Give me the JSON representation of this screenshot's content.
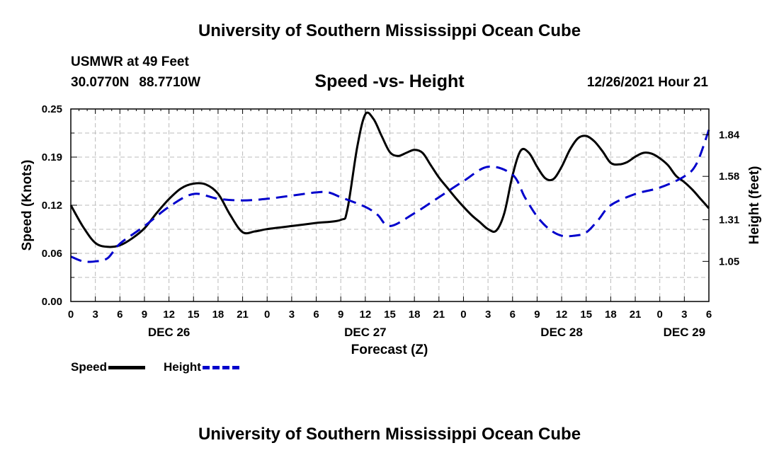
{
  "page": {
    "title": "University of Southern Mississippi Ocean Cube",
    "footer_title": "University of Southern Mississippi Ocean Cube",
    "station": "USMWR at 49 Feet",
    "lat": "30.0770N",
    "lon": "88.7710W",
    "subtitle": "Speed -vs- Height",
    "datetime": "12/26/2021 Hour 21"
  },
  "colors": {
    "speed": "#000000",
    "height": "#0000cc",
    "grid": "#bbbbbb"
  },
  "chart_data": {
    "type": "line",
    "title": "Speed -vs- Height",
    "xlabel": "Forecast (Z)",
    "ylabel": "Speed (Knots)",
    "y2label": "Height (feet)",
    "ylim": [
      0,
      0.25
    ],
    "y2lim": [
      0.8,
      2.0
    ],
    "x_range_hours": [
      0,
      78
    ],
    "x_ticks": [
      "0",
      "3",
      "6",
      "9",
      "12",
      "15",
      "18",
      "21",
      "0",
      "3",
      "6",
      "9",
      "12",
      "15",
      "18",
      "21",
      "0",
      "3",
      "6",
      "9",
      "12",
      "15",
      "18",
      "21",
      "0",
      "3",
      "6"
    ],
    "date_labels": [
      {
        "label": "DEC 26",
        "hour": 12
      },
      {
        "label": "DEC 27",
        "hour": 36
      },
      {
        "label": "DEC 28",
        "hour": 60
      },
      {
        "label": "DEC 29",
        "hour": 75
      }
    ],
    "y_ticks": [
      "0.00",
      "0.06",
      "0.12",
      "0.19",
      "0.25"
    ],
    "y_tick_values": [
      0.0,
      0.0625,
      0.125,
      0.1875,
      0.25
    ],
    "y2_ticks": [
      "1.05",
      "1.31",
      "1.58",
      "1.84"
    ],
    "y2_tick_values": [
      1.05,
      1.31,
      1.58,
      1.84
    ],
    "legend": [
      {
        "name": "Speed",
        "style": "solid"
      },
      {
        "name": "Height",
        "style": "dashed"
      }
    ],
    "series": [
      {
        "name": "Speed",
        "axis": "left",
        "hours": [
          0,
          1.5,
          3,
          4.5,
          6,
          7.5,
          9,
          10.5,
          12,
          13.5,
          15,
          16.5,
          18,
          19.5,
          21,
          22.5,
          24,
          27,
          30,
          33,
          33.8,
          35,
          36,
          37,
          38,
          39,
          40,
          41,
          42,
          43,
          44,
          45,
          46,
          47,
          48,
          49,
          50,
          51,
          52,
          53,
          54,
          55,
          56,
          57,
          58,
          59,
          60,
          61,
          62,
          63,
          64,
          65,
          66,
          67,
          68,
          69,
          70,
          71,
          72,
          73,
          74,
          75,
          76,
          77,
          78
        ],
        "values": [
          0.125,
          0.097,
          0.076,
          0.071,
          0.073,
          0.082,
          0.095,
          0.115,
          0.133,
          0.147,
          0.153,
          0.152,
          0.14,
          0.112,
          0.09,
          0.091,
          0.094,
          0.098,
          0.102,
          0.106,
          0.119,
          0.2,
          0.243,
          0.237,
          0.215,
          0.194,
          0.189,
          0.193,
          0.197,
          0.193,
          0.177,
          0.161,
          0.148,
          0.135,
          0.123,
          0.112,
          0.103,
          0.094,
          0.092,
          0.115,
          0.164,
          0.196,
          0.193,
          0.175,
          0.16,
          0.159,
          0.175,
          0.197,
          0.212,
          0.215,
          0.208,
          0.195,
          0.18,
          0.178,
          0.181,
          0.188,
          0.193,
          0.192,
          0.186,
          0.177,
          0.163,
          0.155,
          0.145,
          0.133,
          0.121
        ]
      },
      {
        "name": "Height",
        "axis": "right",
        "hours": [
          0,
          1.5,
          3,
          4.5,
          6,
          9,
          12,
          15,
          18,
          21,
          24,
          27,
          30,
          31.5,
          33,
          36,
          37.5,
          39,
          42,
          45,
          48,
          51,
          54,
          55.5,
          57,
          58.5,
          60,
          61.5,
          63,
          64.5,
          66,
          69,
          72,
          75,
          76.5,
          78
        ],
        "values": [
          1.08,
          1.05,
          1.05,
          1.07,
          1.16,
          1.27,
          1.39,
          1.47,
          1.44,
          1.43,
          1.44,
          1.46,
          1.48,
          1.48,
          1.45,
          1.39,
          1.34,
          1.27,
          1.35,
          1.45,
          1.55,
          1.64,
          1.59,
          1.45,
          1.33,
          1.25,
          1.21,
          1.21,
          1.23,
          1.31,
          1.4,
          1.47,
          1.51,
          1.58,
          1.66,
          1.87
        ]
      }
    ]
  }
}
